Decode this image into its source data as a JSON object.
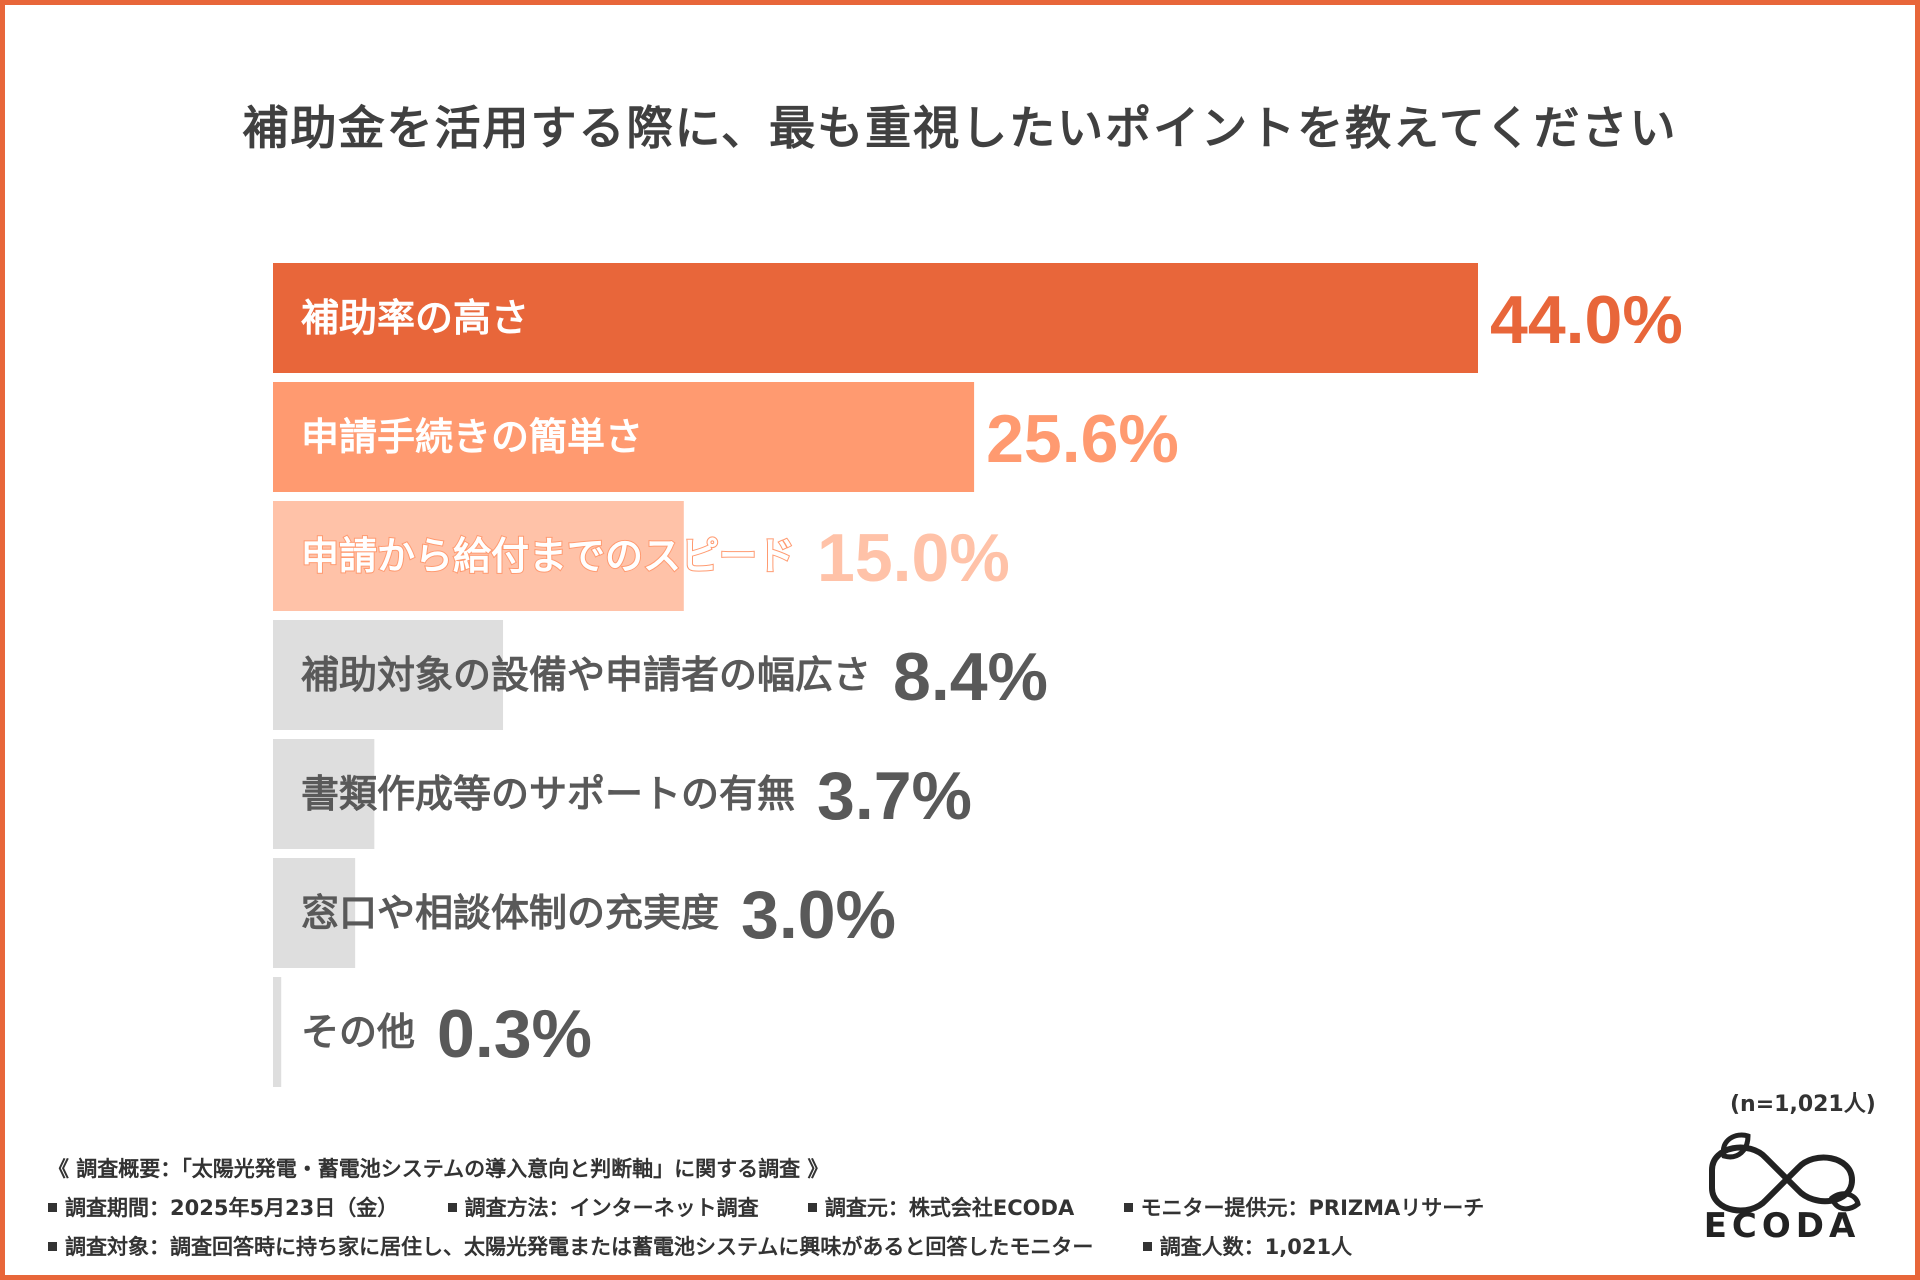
{
  "chart_data": {
    "type": "bar",
    "orientation": "horizontal",
    "title": "補助金を活用する際に、最も重視したいポイントを教えてください",
    "categories": [
      "補助率の高さ",
      "申請手続きの簡単さ",
      "申請から給付までのスピード",
      "補助対象の設備や申請者の幅広さ",
      "書類作成等のサポートの有無",
      "窓口や相談体制の充実度",
      "その他"
    ],
    "values": [
      44.0,
      25.6,
      15.0,
      8.4,
      3.7,
      3.0,
      0.3
    ],
    "value_labels": [
      "44.0%",
      "25.6%",
      "15.0%",
      "8.4%",
      "3.7%",
      "3.0%",
      "0.3%"
    ],
    "unit": "%",
    "xlim": [
      0,
      44.0
    ],
    "sample_size": "(n=1,021人)",
    "colors": {
      "top1": "#e8663a",
      "top2": "#ff9a70",
      "top3": "#ffc2a8",
      "other_bar": "#dedede",
      "other_text": "#595959",
      "top_label_text": "#ffffff"
    }
  },
  "footer": {
    "summary": "《 調査概要：「太陽光発電・蓄電池システムの導入意向と判断軸」に関する調査 》",
    "period": "調査期間：2025年5月23日（金）",
    "method": "調査方法：インターネット調査",
    "organizer": "調査元：株式会社ECODA",
    "monitor": "モニター提供元：PRIZMAリサーチ",
    "target": "調査対象：調査回答時に持ち家に居住し、太陽光発電または蓄電池システムに興味があると回答したモニター",
    "count": "調査人数：1,021人"
  },
  "logo": {
    "text": "ECODA",
    "icon": "infinity-leaf-icon"
  }
}
